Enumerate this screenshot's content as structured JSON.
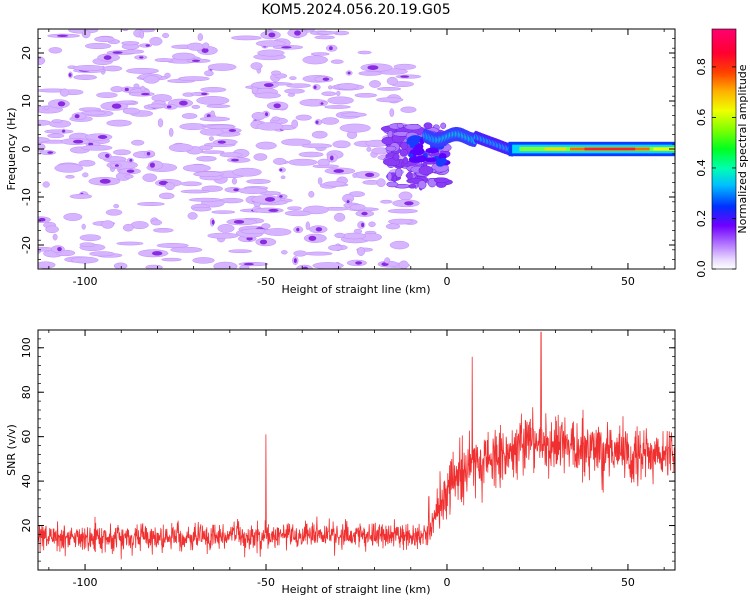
{
  "title": "KOM5.2024.056.20.19.G05",
  "colors": {
    "snr_line": "#f03030",
    "axis": "#000000",
    "weak_blob": "#d6b4ff",
    "weak_blob_edge": "#c090f8",
    "blob_core": "#8a2be2"
  },
  "chart_data": [
    {
      "type": "heatmap",
      "xlabel": "Height of straight line (km)",
      "ylabel": "Frequency (Hz)",
      "xlim": [
        -113,
        63
      ],
      "ylim": [
        -25,
        25
      ],
      "xticks": [
        -100,
        -50,
        0,
        50
      ],
      "yticks": [
        -20,
        -10,
        0,
        10,
        20
      ],
      "xtick_labels": [
        "-100",
        "-50",
        "0",
        "50"
      ],
      "ytick_labels": [
        "-20",
        "-10",
        "0",
        "10",
        "20"
      ],
      "colorbar": {
        "label": "Normalized spectral amplitude",
        "range": [
          0.0,
          0.95
        ],
        "ticks": [
          0.0,
          0.2,
          0.4,
          0.6,
          0.8
        ],
        "tick_labels": [
          "0.0",
          "0.2",
          "0.4",
          "0.6",
          "0.8"
        ],
        "colormap": "gist_rainbow_r"
      },
      "features": [
        {
          "x_start": -113,
          "x_end": -10,
          "freq_hz": [
            -25,
            25
          ],
          "amplitude": 0.05
        },
        {
          "x_start": -15,
          "x_end": 0,
          "freq_hz": [
            -8,
            5
          ],
          "amplitude": 0.15
        },
        {
          "x_start": -5,
          "x_end": 8,
          "freq_hz": 3,
          "amplitude": 0.4
        },
        {
          "x_start": 8,
          "x_end": 18,
          "freq_hz": 0,
          "amplitude": 0.35
        },
        {
          "x_start": 18,
          "x_end": 63,
          "freq_hz": 0,
          "amplitude": 0.8
        }
      ]
    },
    {
      "type": "line",
      "xlabel": "Height of straight line (km)",
      "ylabel": "SNR (v/v)",
      "xlim": [
        -113,
        63
      ],
      "ylim": [
        0,
        108
      ],
      "xticks": [
        -100,
        -50,
        0,
        50
      ],
      "yticks": [
        20,
        40,
        60,
        80,
        100
      ],
      "xtick_labels": [
        "-100",
        "-50",
        "0",
        "50"
      ],
      "ytick_labels": [
        "20",
        "40",
        "60",
        "80",
        "100"
      ],
      "series": [
        {
          "trend": [
            [
              -113,
              14
            ],
            [
              -60,
              15
            ],
            [
              -20,
              16
            ],
            [
              -5,
              15
            ],
            [
              -3,
              28
            ],
            [
              2,
              42
            ],
            [
              10,
              50
            ],
            [
              25,
              57
            ],
            [
              35,
              55
            ],
            [
              50,
              52
            ],
            [
              63,
              52
            ]
          ],
          "noise_amplitude": [
            [
              -113,
              8
            ],
            [
              -4,
              8
            ],
            [
              -2,
              18
            ],
            [
              63,
              16
            ]
          ],
          "peaks": [
            [
              -50,
              61
            ],
            [
              7,
              96
            ],
            [
              26,
              107
            ],
            [
              -5,
              33
            ]
          ]
        }
      ]
    }
  ]
}
